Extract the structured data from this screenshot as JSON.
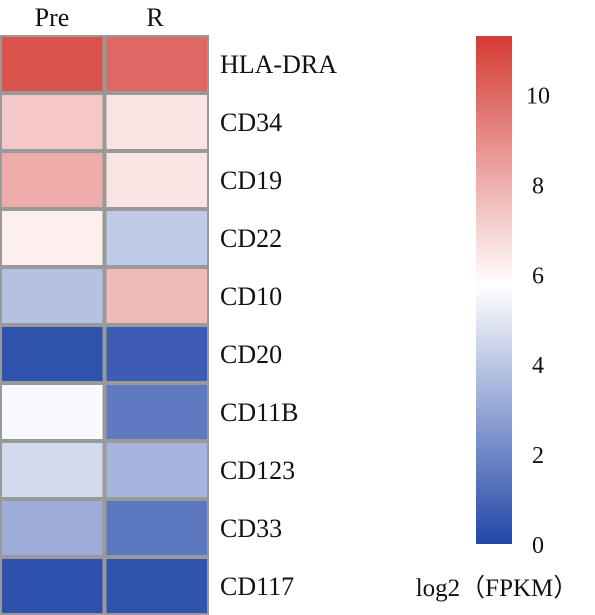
{
  "chart_data": {
    "type": "heatmap",
    "title": "",
    "columns": [
      "Pre",
      "R"
    ],
    "rows": [
      "HLA-DRA",
      "CD34",
      "CD19",
      "CD22",
      "CD10",
      "CD20",
      "CD11B",
      "CD123",
      "CD33",
      "CD117"
    ],
    "values": [
      [
        10.6,
        10.0
      ],
      [
        7.3,
        6.5
      ],
      [
        8.1,
        6.5
      ],
      [
        6.2,
        4.1
      ],
      [
        3.8,
        7.7
      ],
      [
        0.4,
        0.7
      ],
      [
        5.6,
        1.6
      ],
      [
        4.6,
        3.4
      ],
      [
        3.2,
        1.5
      ],
      [
        0.3,
        0.4
      ]
    ],
    "colorbar": {
      "label": "log2（FPKM）",
      "min": 0,
      "max": 11.3,
      "ticks": [
        0,
        2,
        4,
        6,
        8,
        10
      ],
      "low_color": "#2147a8",
      "mid_color": "#ffffff",
      "mid_value": 5.75,
      "high_color": "#d53a33"
    }
  }
}
